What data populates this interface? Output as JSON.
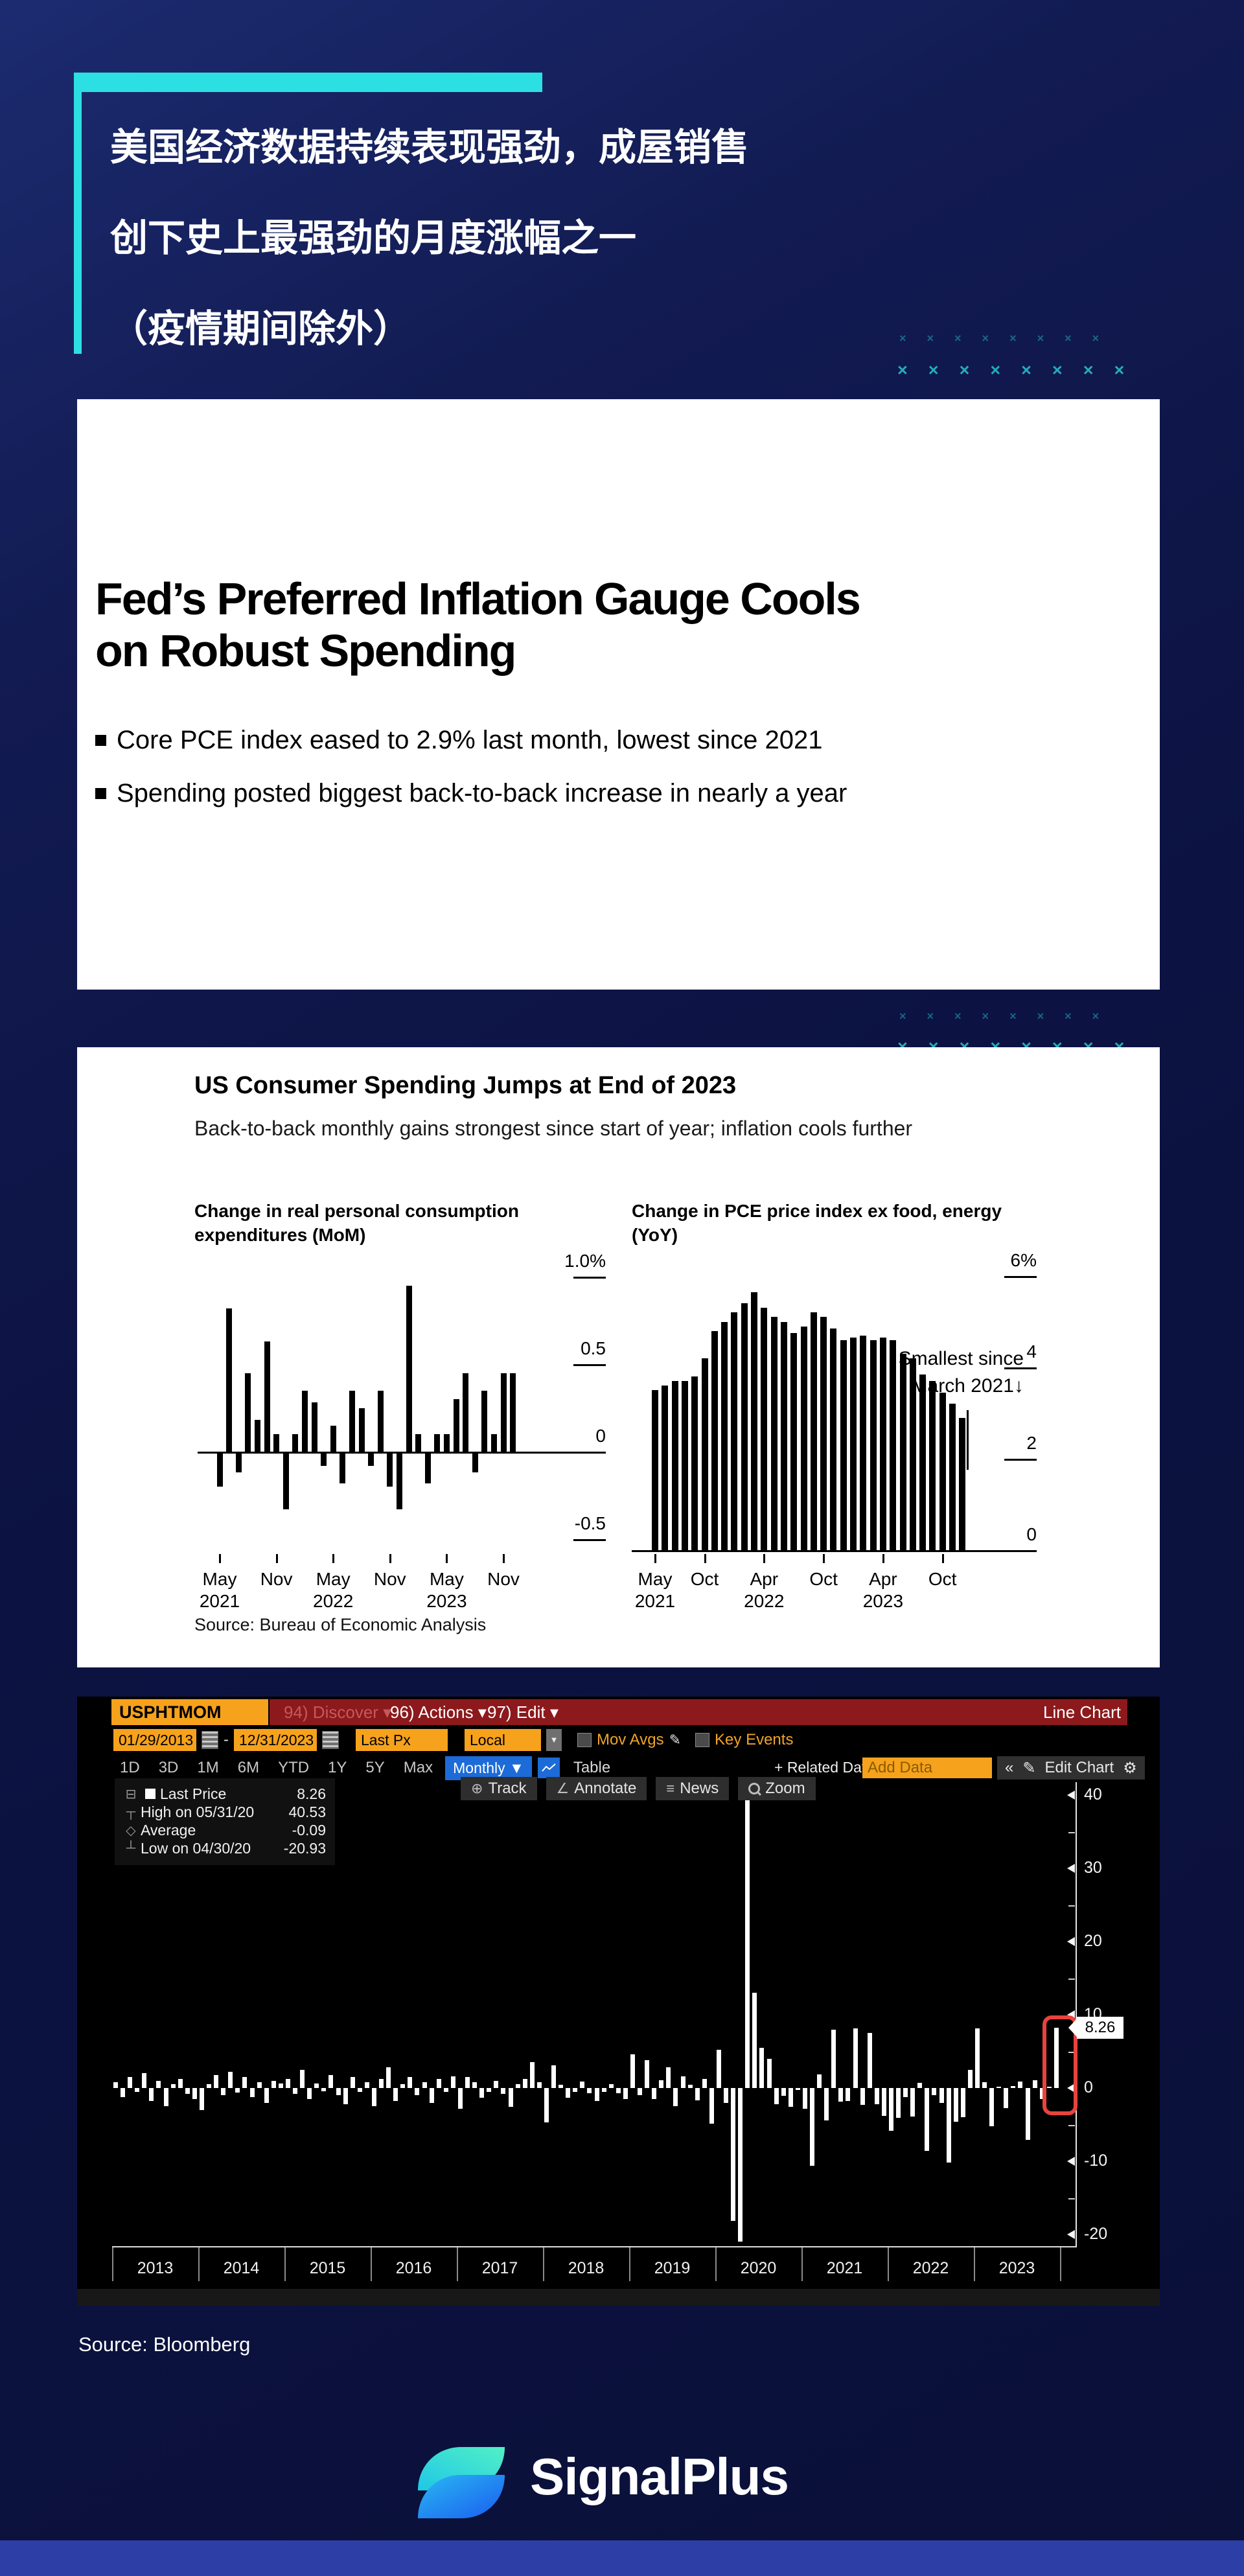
{
  "page": {
    "accent": "#2cdfe3",
    "bottom_bar_color": "#2d3ea6",
    "title_lines": [
      "美国经济数据持续表现强劲，成屋销售",
      "创下史上最强劲的月度涨幅之一",
      "（疫情期间除外）"
    ],
    "source_label": "Source: Bloomberg",
    "brand_name": "SignalPlus"
  },
  "article_card": {
    "headline_lines": [
      "Fed’s Preferred Inflation Gauge Cools",
      "on Robust Spending"
    ],
    "bullets": [
      "Core PCE index eased to 2.9% last month, lowest since 2021",
      "Spending posted biggest back-to-back increase in nearly a year"
    ]
  },
  "chart_card": {
    "title": "US Consumer Spending Jumps at End of 2023",
    "subtitle": "Back-to-back monthly gains strongest since start of year; inflation cools further",
    "source": "Source: Bureau of Economic Analysis"
  },
  "chart_data": [
    {
      "type": "bar",
      "title": "Change in real personal consumption expenditures (MoM)",
      "title_lines": [
        "Change in real personal consumption",
        "expenditures (MoM)"
      ],
      "unit": "%",
      "ylim": [
        -0.5,
        1.0
      ],
      "categories": [
        "May 2021",
        "Jun 2021",
        "Jul 2021",
        "Aug 2021",
        "Sep 2021",
        "Oct 2021",
        "Nov 2021",
        "Dec 2021",
        "Jan 2022",
        "Feb 2022",
        "Mar 2022",
        "Apr 2022",
        "May 2022",
        "Jun 2022",
        "Jul 2022",
        "Aug 2022",
        "Sep 2022",
        "Oct 2022",
        "Nov 2022",
        "Dec 2022",
        "Jan 2023",
        "Feb 2023",
        "Mar 2023",
        "Apr 2023",
        "May 2023",
        "Jun 2023",
        "Jul 2023",
        "Aug 2023",
        "Sep 2023",
        "Oct 2023",
        "Nov 2023",
        "Dec 2023"
      ],
      "values": [
        -0.2,
        0.82,
        -0.12,
        0.45,
        0.18,
        0.63,
        0.1,
        -0.33,
        0.1,
        0.35,
        0.28,
        -0.08,
        0.15,
        -0.18,
        0.35,
        0.25,
        -0.08,
        0.35,
        -0.2,
        -0.33,
        0.95,
        0.1,
        -0.18,
        0.1,
        0.1,
        0.3,
        0.45,
        -0.12,
        0.35,
        0.1,
        0.45,
        0.45
      ],
      "ytick_values": [
        1.0,
        0.5,
        0,
        -0.5
      ],
      "ytick_labels": [
        "1.0%",
        "0.5",
        "0",
        "-0.5"
      ],
      "xticks": [
        {
          "index": 0,
          "lines": [
            "May",
            "2021"
          ]
        },
        {
          "index": 6,
          "lines": [
            "Nov"
          ]
        },
        {
          "index": 12,
          "lines": [
            "May",
            "2022"
          ]
        },
        {
          "index": 18,
          "lines": [
            "Nov"
          ]
        },
        {
          "index": 24,
          "lines": [
            "May",
            "2023"
          ]
        },
        {
          "index": 30,
          "lines": [
            "Nov"
          ]
        }
      ]
    },
    {
      "type": "bar",
      "title": "Change in PCE price index ex food, energy (YoY)",
      "title_lines": [
        "Change in PCE price index ex food, energy",
        "(YoY)"
      ],
      "unit": "%",
      "ylim": [
        0,
        6
      ],
      "categories": [
        "May 2021",
        "Jun 2021",
        "Jul 2021",
        "Aug 2021",
        "Sep 2021",
        "Oct 2021",
        "Nov 2021",
        "Dec 2021",
        "Jan 2022",
        "Feb 2022",
        "Mar 2022",
        "Apr 2022",
        "May 2022",
        "Jun 2022",
        "Jul 2022",
        "Aug 2022",
        "Sep 2022",
        "Oct 2022",
        "Nov 2022",
        "Dec 2022",
        "Jan 2023",
        "Feb 2023",
        "Mar 2023",
        "Apr 2023",
        "May 2023",
        "Jun 2023",
        "Jul 2023",
        "Aug 2023",
        "Sep 2023",
        "Oct 2023",
        "Nov 2023",
        "Dec 2023"
      ],
      "values": [
        3.5,
        3.6,
        3.7,
        3.7,
        3.8,
        4.2,
        4.8,
        5.0,
        5.2,
        5.4,
        5.65,
        5.3,
        5.1,
        5.0,
        4.75,
        4.9,
        5.2,
        5.1,
        4.85,
        4.6,
        4.65,
        4.7,
        4.6,
        4.65,
        4.6,
        4.3,
        4.2,
        3.85,
        3.7,
        3.45,
        3.2,
        2.9
      ],
      "ytick_values": [
        6,
        4,
        2,
        0
      ],
      "ytick_labels": [
        "6%",
        "4",
        "2",
        "0"
      ],
      "annotation_lines": [
        "Smallest since",
        "March 2021↓"
      ],
      "xticks": [
        {
          "index": 0,
          "lines": [
            "May",
            "2021"
          ]
        },
        {
          "index": 5,
          "lines": [
            "Oct"
          ]
        },
        {
          "index": 11,
          "lines": [
            "Apr",
            "2022"
          ]
        },
        {
          "index": 17,
          "lines": [
            "Oct"
          ]
        },
        {
          "index": 23,
          "lines": [
            "Apr",
            "2023"
          ]
        },
        {
          "index": 29,
          "lines": [
            "Oct"
          ]
        }
      ]
    },
    {
      "type": "bar",
      "title": "USPHTMOM Index",
      "ylim": [
        -25,
        45
      ],
      "years": [
        "2013",
        "2014",
        "2015",
        "2016",
        "2017",
        "2018",
        "2019",
        "2020",
        "2021",
        "2022",
        "2023"
      ],
      "values": [
        0.8,
        -1.2,
        1.5,
        -0.5,
        2.0,
        -1.8,
        1.0,
        -2.5,
        0.5,
        1.2,
        -0.8,
        -1.5,
        -3.0,
        0.5,
        1.8,
        -1.0,
        2.2,
        -0.6,
        1.5,
        -1.2,
        0.8,
        -2.0,
        1.0,
        0.6,
        1.2,
        -0.8,
        2.5,
        -1.5,
        0.6,
        -0.4,
        1.8,
        -1.0,
        -2.2,
        1.5,
        -0.5,
        0.8,
        -2.5,
        1.2,
        2.8,
        -1.8,
        0.5,
        1.5,
        -1.0,
        0.8,
        -2.0,
        1.2,
        -0.5,
        1.6,
        -2.8,
        1.5,
        0.8,
        -1.3,
        -0.5,
        1.0,
        -0.8,
        -2.6,
        0.5,
        1.2,
        3.5,
        0.8,
        -4.7,
        3.1,
        0.4,
        -1.3,
        -0.5,
        0.9,
        -0.7,
        -1.8,
        -0.5,
        0.5,
        -0.7,
        -1.5,
        4.6,
        -1.0,
        3.8,
        -1.5,
        1.1,
        2.8,
        -2.5,
        1.6,
        0.4,
        -1.7,
        1.2,
        -4.9,
        5.2,
        -2.0,
        -18.1,
        -20.93,
        40.53,
        13.0,
        5.5,
        4.0,
        -2.2,
        -1.1,
        -2.6,
        -0.3,
        -2.8,
        -10.6,
        1.9,
        -4.4,
        8.0,
        -1.9,
        -1.8,
        8.1,
        -2.3,
        7.5,
        -2.2,
        -3.8,
        -5.8,
        -4.1,
        -1.2,
        -3.9,
        0.7,
        -8.6,
        -1.0,
        -2.0,
        -10.2,
        -4.6,
        -4.0,
        2.5,
        8.1,
        0.8,
        -5.2,
        0.0,
        -2.7,
        0.3,
        0.9,
        -7.1,
        1.1,
        -1.5,
        0.0,
        8.26
      ],
      "ytick_values": [
        40,
        30,
        20,
        10,
        0,
        -10,
        -20
      ],
      "last_price": 8.26,
      "high": {
        "date": "05/31/20",
        "value": 40.53
      },
      "average": -0.09,
      "low": {
        "date": "04/30/20",
        "value": -20.93
      }
    }
  ],
  "terminal": {
    "security": "USPHTMOM Index",
    "menus": [
      "94) Discover ▾",
      "96) Actions ▾",
      "97) Edit ▾"
    ],
    "chart_type_label": "Line Chart",
    "date_from": "01/29/2013",
    "date_sep": "-",
    "date_to": "12/31/2023",
    "price_field": "Last Px",
    "currency": "Local CCY",
    "mov_avgs_label": "Mov Avgs",
    "key_events_label": "Key Events",
    "ranges": [
      "1D",
      "3D",
      "1M",
      "6M",
      "YTD",
      "1Y",
      "5Y",
      "Max"
    ],
    "frequency": "Monthly ▼",
    "table_label": "Table",
    "related_label": "+ Related Dat",
    "add_data_placeholder": "Add Data",
    "collapse_label": "«",
    "edit_chart_label": "Edit Chart",
    "tools": [
      "Track",
      "Annotate",
      "News",
      "Zoom"
    ],
    "legend": [
      {
        "label": "Last Price",
        "value": "8.26"
      },
      {
        "label": "High on 05/31/20",
        "value": "40.53"
      },
      {
        "label": "Average",
        "value": "-0.09"
      },
      {
        "label": "Low on 04/30/20",
        "value": "-20.93"
      }
    ],
    "price_tag": "8.26"
  }
}
